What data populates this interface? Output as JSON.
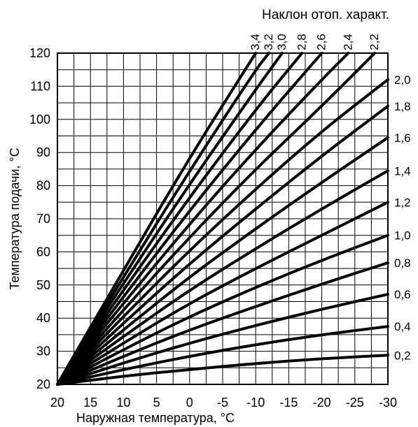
{
  "chart_data": {
    "type": "line",
    "title": "Наклон отоп. характ.",
    "xlabel": "Наружная температура, °C",
    "ylabel": "Температура подачи, °C",
    "xlim": [
      20,
      -30
    ],
    "ylim": [
      20,
      120
    ],
    "x_ticks": [
      20,
      15,
      10,
      5,
      0,
      -5,
      -10,
      -15,
      -20,
      -25,
      -30
    ],
    "x_tick_labels": [
      "20",
      "15",
      "10",
      "5",
      "0",
      "-5",
      "-10",
      "-15",
      "-20",
      "-25",
      "-30"
    ],
    "y_ticks": [
      20,
      30,
      40,
      50,
      60,
      70,
      80,
      90,
      100,
      110,
      120
    ],
    "y_tick_labels": [
      "20",
      "30",
      "40",
      "50",
      "60",
      "70",
      "80",
      "90",
      "100",
      "110",
      "120"
    ],
    "grid": true,
    "series": [
      {
        "name": "0,2",
        "x": [
          20,
          10,
          0,
          -10,
          -20,
          -30
        ],
        "y": [
          20,
          22.5,
          24.5,
          26.3,
          27.8,
          28.8
        ]
      },
      {
        "name": "0,4",
        "x": [
          20,
          10,
          0,
          -10,
          -20,
          -30
        ],
        "y": [
          20,
          24.5,
          28.5,
          32,
          35,
          37.5
        ]
      },
      {
        "name": "0,6",
        "x": [
          20,
          10,
          0,
          -10,
          -20,
          -30
        ],
        "y": [
          20,
          26.5,
          32.5,
          37.8,
          42.7,
          47.2
        ]
      },
      {
        "name": "0,8",
        "x": [
          20,
          10,
          0,
          -10,
          -20,
          -30
        ],
        "y": [
          20,
          28.5,
          36.5,
          43.5,
          50.3,
          56.7
        ]
      },
      {
        "name": "1,0",
        "x": [
          20,
          10,
          0,
          -10,
          -20,
          -30
        ],
        "y": [
          20,
          30.5,
          40.5,
          49.3,
          57.5,
          65
        ]
      },
      {
        "name": "1,2",
        "x": [
          20,
          10,
          0,
          -10,
          -20,
          -30
        ],
        "y": [
          20,
          32.5,
          44.5,
          55,
          65,
          75
        ]
      },
      {
        "name": "1,4",
        "x": [
          20,
          10,
          0,
          -10,
          -20,
          -30
        ],
        "y": [
          20,
          34.5,
          48.5,
          61,
          73,
          84.5
        ]
      },
      {
        "name": "1,6",
        "x": [
          20,
          10,
          0,
          -10,
          -20,
          -30
        ],
        "y": [
          20,
          36.5,
          52.5,
          67,
          81,
          94.5
        ]
      },
      {
        "name": "1,8",
        "x": [
          20,
          10,
          0,
          -10,
          -20,
          -30
        ],
        "y": [
          20,
          38.5,
          56.5,
          73,
          89,
          104
        ]
      },
      {
        "name": "2,0",
        "x": [
          20,
          10,
          0,
          -10,
          -20,
          -30
        ],
        "y": [
          20,
          40.5,
          60.5,
          79,
          96.5,
          112
        ]
      },
      {
        "name": "2,2",
        "x": [
          20,
          10,
          0,
          -10,
          -20,
          -28
        ],
        "y": [
          20,
          42.5,
          64.5,
          85,
          104,
          120
        ]
      },
      {
        "name": "2,4",
        "x": [
          20,
          10,
          0,
          -10,
          -20,
          -24
        ],
        "y": [
          20,
          44.5,
          68.5,
          91,
          112,
          120
        ]
      },
      {
        "name": "2,6",
        "x": [
          20,
          10,
          0,
          -10,
          -20
        ],
        "y": [
          20,
          46.5,
          72.5,
          97,
          120
        ]
      },
      {
        "name": "2,8",
        "x": [
          20,
          10,
          0,
          -10,
          -17
        ],
        "y": [
          20,
          48.5,
          76.5,
          103,
          120
        ]
      },
      {
        "name": "3,0",
        "x": [
          20,
          10,
          0,
          -10,
          -14
        ],
        "y": [
          20,
          50.5,
          80.5,
          109,
          120
        ]
      },
      {
        "name": "3,2",
        "x": [
          20,
          10,
          0,
          -10,
          -12
        ],
        "y": [
          20,
          52.5,
          84.5,
          115,
          120
        ]
      },
      {
        "name": "3,4",
        "x": [
          20,
          10,
          0,
          -10
        ],
        "y": [
          20,
          54.5,
          88.5,
          120
        ]
      }
    ]
  }
}
